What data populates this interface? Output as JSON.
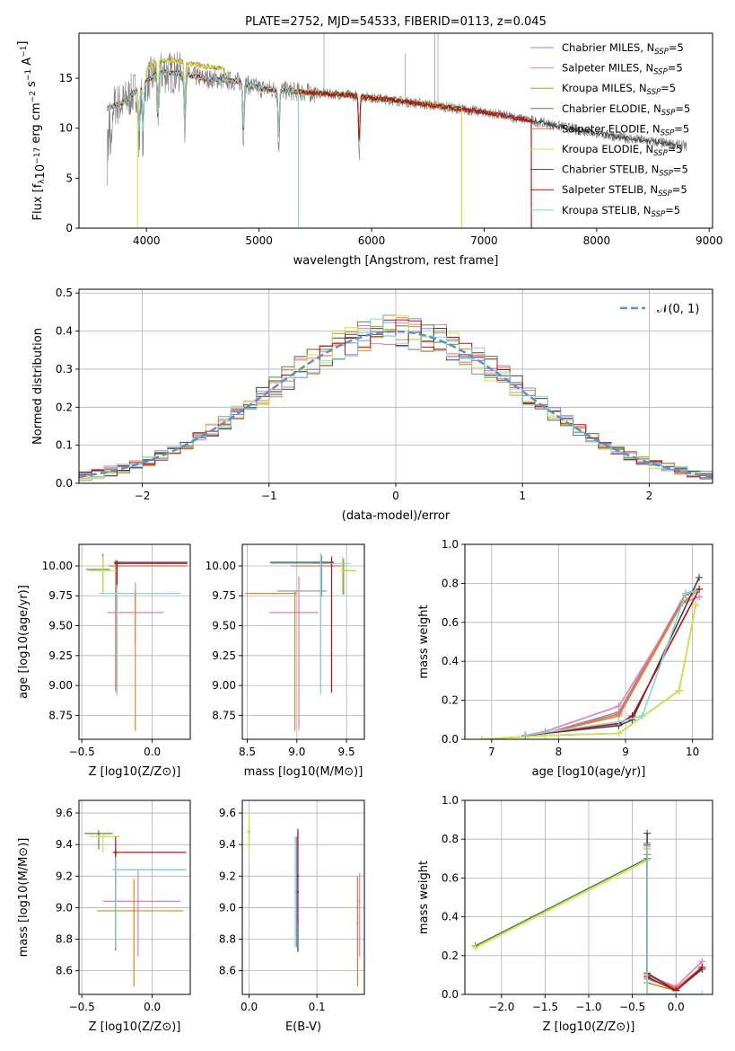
{
  "colors": {
    "Chabrier MILES": "#7b8fe0",
    "Salpeter MILES": "#e07fc0",
    "Kroupa MILES": "#d98a1c",
    "Chabrier ELODIE": "#4f8a45",
    "Salpeter ELODIE": "#ea7555",
    "Kroupa ELODIE": "#d2e640",
    "Chabrier STELIB": "#444444",
    "Salpeter STELIB": "#b51010",
    "Kroupa STELIB": "#7fd9dc",
    "normal": "#5b8fd0",
    "data": "#808080"
  },
  "legend": [
    {
      "key": "Chabrier MILES",
      "text": "Chabrier MILES, N",
      "sub": "SSP",
      "tail": "=5"
    },
    {
      "key": "Salpeter MILES",
      "text": "Salpeter MILES, N",
      "sub": "SSP",
      "tail": "=5"
    },
    {
      "key": "Kroupa MILES",
      "text": "Kroupa MILES, N",
      "sub": "SSP",
      "tail": "=5"
    },
    {
      "key": "Chabrier ELODIE",
      "text": "Chabrier ELODIE, N",
      "sub": "SSP",
      "tail": "=5"
    },
    {
      "key": "Salpeter ELODIE",
      "text": "Salpeter ELODIE, N",
      "sub": "SSP",
      "tail": "=5"
    },
    {
      "key": "Kroupa ELODIE",
      "text": "Kroupa ELODIE, N",
      "sub": "SSP",
      "tail": "=5"
    },
    {
      "key": "Chabrier STELIB",
      "text": "Chabrier STELIB, N",
      "sub": "SSP",
      "tail": "=5"
    },
    {
      "key": "Salpeter STELIB",
      "text": "Salpeter STELIB, N",
      "sub": "SSP",
      "tail": "=5"
    },
    {
      "key": "Kroupa STELIB",
      "text": "Kroupa STELIB, N",
      "sub": "SSP",
      "tail": "=5"
    }
  ],
  "chart_data": [
    {
      "id": "spectrum",
      "type": "line",
      "title": "PLATE=2752, MJD=54533, FIBERID=0113, z=0.045",
      "xlabel": "wavelength [Angstrom, rest frame]",
      "ylabel": "Flux [f_λ 10^-17 erg cm^-2 s^-1 A^-1]",
      "xlim": [
        3400,
        9030
      ],
      "ylim": [
        0,
        19.5
      ],
      "xticks": [
        4000,
        5000,
        6000,
        7000,
        8000,
        9000
      ],
      "yticks": [
        0,
        5,
        10,
        15
      ],
      "grid": false,
      "legend_position": "top-right",
      "continuum": [
        [
          3650,
          12.0
        ],
        [
          3800,
          12.6
        ],
        [
          3950,
          14.2
        ],
        [
          4100,
          15.6
        ],
        [
          4300,
          15.5
        ],
        [
          4500,
          15.0
        ],
        [
          4800,
          14.7
        ],
        [
          5000,
          14.0
        ],
        [
          5400,
          13.6
        ],
        [
          5800,
          13.3
        ],
        [
          6200,
          12.8
        ],
        [
          6600,
          12.2
        ],
        [
          7000,
          11.6
        ],
        [
          7400,
          10.8
        ],
        [
          7800,
          9.9
        ],
        [
          8200,
          9.1
        ],
        [
          8600,
          8.5
        ],
        [
          8800,
          8.2
        ]
      ],
      "absorption_lines": [
        3934,
        3969,
        4102,
        4340,
        4861,
        5175,
        5890
      ],
      "model_dips": [
        3920,
        5350,
        6800,
        7420
      ]
    },
    {
      "id": "residuals",
      "type": "bar",
      "xlabel": "(data-model)/error",
      "ylabel": "Normed distribution",
      "xlim": [
        -2.5,
        2.5
      ],
      "ylim": [
        0,
        0.51
      ],
      "xticks": [
        -2,
        -1,
        0,
        1,
        2
      ],
      "yticks": [
        0.0,
        0.1,
        0.2,
        0.3,
        0.4,
        0.5
      ],
      "grid": true,
      "legend": "𝒩(0, 1)",
      "legend_position": "top-right",
      "bin_width": 0.1,
      "series_note": "9 histogram step series, one per model"
    },
    {
      "id": "age_vs_Z",
      "type": "scatter",
      "xlabel": "Z [log10(Z/Z⊙)]",
      "ylabel": "age  [log10(age/yr)]",
      "xlim": [
        -0.52,
        0.27
      ],
      "ylim": [
        8.55,
        10.18
      ],
      "xticks": [
        -0.5,
        0.0
      ],
      "yticks": [
        8.75,
        9.0,
        9.25,
        9.5,
        9.75,
        10.0
      ],
      "grid": true,
      "errorbars": [
        {
          "series": "Chabrier MILES",
          "x": -0.25,
          "y": 10.0,
          "xerr": [
            0.0,
            0.5
          ],
          "yerr": [
            0.28,
            0.05
          ]
        },
        {
          "series": "Salpeter MILES",
          "x": -0.12,
          "y": 9.61,
          "xerr": [
            0.2,
            0.2
          ],
          "yerr": [
            0.25,
            0.25
          ]
        },
        {
          "series": "Kroupa MILES",
          "x": -0.12,
          "y": 9.77,
          "xerr": [
            0.12,
            0.2
          ],
          "yerr": [
            1.15,
            0.02
          ]
        },
        {
          "series": "Chabrier ELODIE",
          "x": -0.35,
          "y": 9.97,
          "xerr": [
            0.12,
            0.05
          ],
          "yerr": [
            0.2,
            0.13
          ]
        },
        {
          "series": "Salpeter ELODIE",
          "x": -0.26,
          "y": 10.0,
          "xerr": [
            0.05,
            0.5
          ],
          "yerr": [
            1.05,
            0.05
          ]
        },
        {
          "series": "Kroupa ELODIE",
          "x": -0.35,
          "y": 9.96,
          "xerr": [
            0.1,
            0.12
          ],
          "yerr": [
            0.2,
            0.12
          ]
        },
        {
          "series": "Chabrier STELIB",
          "x": -0.25,
          "y": 10.03,
          "xerr": [
            0.02,
            0.5
          ],
          "yerr": [
            1.1,
            0.01
          ]
        },
        {
          "series": "Salpeter STELIB",
          "x": -0.25,
          "y": 10.02,
          "xerr": [
            0.02,
            0.5
          ],
          "yerr": [
            0.18,
            0.01
          ]
        },
        {
          "series": "Kroupa STELIB",
          "x": -0.25,
          "y": 9.77,
          "xerr": [
            0.13,
            0.45
          ],
          "yerr": [
            0.85,
            0.07
          ]
        }
      ]
    },
    {
      "id": "age_vs_mass",
      "type": "scatter",
      "xlabel": "mass [log10(M/M⊙)]",
      "ylabel": "",
      "xlim": [
        8.45,
        9.68
      ],
      "ylim": [
        8.55,
        10.18
      ],
      "xticks": [
        8.5,
        9.0,
        9.5
      ],
      "yticks": [
        8.75,
        9.0,
        9.25,
        9.5,
        9.75,
        10.0
      ],
      "grid": true,
      "errorbars": [
        {
          "series": "Chabrier MILES",
          "x": 9.25,
          "y": 9.79,
          "xerr": [
            0.45,
            0.05
          ],
          "yerr": [
            0.05,
            0.3
          ]
        },
        {
          "series": "Salpeter MILES",
          "x": 9.02,
          "y": 9.61,
          "xerr": [
            0.3,
            0.2
          ],
          "yerr": [
            0.98,
            0.3
          ]
        },
        {
          "series": "Kroupa MILES",
          "x": 8.98,
          "y": 9.77,
          "xerr": [
            0.5,
            0.02
          ],
          "yerr": [
            1.15,
            0.02
          ]
        },
        {
          "series": "Chabrier ELODIE",
          "x": 9.47,
          "y": 9.96,
          "xerr": [
            0.02,
            0.12
          ],
          "yerr": [
            0.2,
            0.1
          ]
        },
        {
          "series": "Salpeter ELODIE",
          "x": 9.24,
          "y": 10.0,
          "xerr": [
            0.3,
            0.22
          ],
          "yerr": [
            1.05,
            0.05
          ]
        },
        {
          "series": "Kroupa ELODIE",
          "x": 9.46,
          "y": 9.96,
          "xerr": [
            0.02,
            0.12
          ],
          "yerr": [
            0.2,
            0.12
          ]
        },
        {
          "series": "Chabrier STELIB",
          "x": 9.35,
          "y": 10.03,
          "xerr": [
            0.62,
            0.02
          ],
          "yerr": [
            0.05,
            0.01
          ]
        },
        {
          "series": "Salpeter STELIB",
          "x": 9.35,
          "y": 10.02,
          "xerr": [
            0.2,
            0.02
          ],
          "yerr": [
            1.08,
            0.06
          ]
        },
        {
          "series": "Kroupa STELIB",
          "x": 9.24,
          "y": 10.02,
          "xerr": [
            0.5,
            0.3
          ],
          "yerr": [
            1.1,
            0.09
          ]
        }
      ]
    },
    {
      "id": "weight_vs_age",
      "type": "line",
      "xlabel": "age  [log10(age/yr)]",
      "ylabel": "mass weight",
      "xlim": [
        6.6,
        10.3
      ],
      "ylim": [
        0,
        1.0
      ],
      "xticks": [
        7,
        8,
        9,
        10
      ],
      "yticks": [
        0.0,
        0.2,
        0.4,
        0.6,
        0.8,
        1.0
      ],
      "grid": true,
      "series": [
        {
          "series": "Chabrier MILES",
          "x": [
            7.5,
            7.8,
            8.9,
            9.9,
            10.1
          ],
          "y": [
            0.02,
            0.03,
            0.14,
            0.75,
            0.77
          ]
        },
        {
          "series": "Salpeter MILES",
          "x": [
            7.5,
            7.8,
            8.9,
            9.85,
            10.1
          ],
          "y": [
            0.02,
            0.04,
            0.17,
            0.7,
            0.73
          ]
        },
        {
          "series": "Kroupa MILES",
          "x": [
            7.5,
            7.8,
            8.9,
            9.85,
            10.1
          ],
          "y": [
            0.02,
            0.03,
            0.12,
            0.7,
            0.77
          ]
        },
        {
          "series": "Chabrier ELODIE",
          "x": [
            6.85,
            7.8,
            8.9,
            9.8,
            10.05
          ],
          "y": [
            0.0,
            0.02,
            0.03,
            0.25,
            0.69
          ]
        },
        {
          "series": "Salpeter ELODIE",
          "x": [
            7.5,
            7.8,
            8.9,
            9.9,
            10.1
          ],
          "y": [
            0.02,
            0.03,
            0.13,
            0.74,
            0.77
          ]
        },
        {
          "series": "Kroupa ELODIE",
          "x": [
            6.85,
            7.8,
            8.9,
            9.8,
            10.05
          ],
          "y": [
            0.0,
            0.02,
            0.03,
            0.25,
            0.69
          ]
        },
        {
          "series": "Chabrier STELIB",
          "x": [
            7.5,
            8.9,
            9.1,
            10.1
          ],
          "y": [
            0.02,
            0.07,
            0.1,
            0.83
          ]
        },
        {
          "series": "Salpeter STELIB",
          "x": [
            7.5,
            8.9,
            9.1,
            10.1
          ],
          "y": [
            0.02,
            0.08,
            0.12,
            0.77
          ]
        },
        {
          "series": "Kroupa STELIB",
          "x": [
            7.5,
            8.9,
            9.25,
            9.9,
            10.05
          ],
          "y": [
            0.02,
            0.09,
            0.12,
            0.75,
            0.76
          ]
        }
      ]
    },
    {
      "id": "mass_vs_Z",
      "type": "scatter",
      "xlabel": "Z [log10(Z/Z⊙)]",
      "ylabel": "mass [log10(M/M⊙)]",
      "xlim": [
        -0.52,
        0.27
      ],
      "ylim": [
        8.45,
        9.68
      ],
      "xticks": [
        -0.5,
        0.0
      ],
      "yticks": [
        8.6,
        8.8,
        9.0,
        9.2,
        9.4,
        9.6
      ],
      "grid": true,
      "errorbars": [
        {
          "series": "Chabrier MILES",
          "x": -0.26,
          "y": 9.24,
          "xerr": [
            0.02,
            0.5
          ],
          "yerr": [
            0.5,
            0.06
          ]
        },
        {
          "series": "Salpeter MILES",
          "x": -0.1,
          "y": 9.04,
          "xerr": [
            0.25,
            0.3
          ],
          "yerr": [
            0.35,
            0.2
          ]
        },
        {
          "series": "Kroupa MILES",
          "x": -0.13,
          "y": 8.98,
          "xerr": [
            0.26,
            0.35
          ],
          "yerr": [
            0.48,
            0.2
          ]
        },
        {
          "series": "Chabrier ELODIE",
          "x": -0.38,
          "y": 9.47,
          "xerr": [
            0.1,
            0.1
          ],
          "yerr": [
            0.1,
            0.02
          ]
        },
        {
          "series": "Salpeter ELODIE",
          "x": -0.26,
          "y": 9.24,
          "xerr": [
            0.02,
            0.5
          ],
          "yerr": [
            0.5,
            0.06
          ]
        },
        {
          "series": "Kroupa ELODIE",
          "x": -0.35,
          "y": 9.45,
          "xerr": [
            0.1,
            0.12
          ],
          "yerr": [
            0.1,
            0.02
          ]
        },
        {
          "series": "Chabrier STELIB",
          "x": -0.26,
          "y": 9.35,
          "xerr": [
            0.02,
            0.5
          ],
          "yerr": [
            0.62,
            0.02
          ]
        },
        {
          "series": "Salpeter STELIB",
          "x": -0.26,
          "y": 9.35,
          "xerr": [
            0.02,
            0.5
          ],
          "yerr": [
            0.2,
            0.1
          ]
        },
        {
          "series": "Kroupa STELIB",
          "x": -0.26,
          "y": 9.24,
          "xerr": [
            0.02,
            0.5
          ],
          "yerr": [
            0.5,
            0.08
          ]
        }
      ]
    },
    {
      "id": "mass_vs_ebv",
      "type": "scatter",
      "xlabel": "E(B-V)",
      "ylabel": "",
      "xlim": [
        -0.01,
        0.17
      ],
      "ylim": [
        8.45,
        9.68
      ],
      "xticks": [
        0.0,
        0.1
      ],
      "yticks": [
        8.6,
        8.8,
        9.0,
        9.2,
        9.4,
        9.6
      ],
      "grid": true,
      "errorbars": [
        {
          "series": "Chabrier MILES",
          "x": 0.07,
          "y": 9.1,
          "yerr": [
            0.35,
            0.35
          ]
        },
        {
          "series": "Salpeter MILES",
          "x": 0.163,
          "y": 9.04,
          "yerr": [
            0.35,
            0.18
          ]
        },
        {
          "series": "Kroupa MILES",
          "x": 0.16,
          "y": 9.0,
          "yerr": [
            0.5,
            0.18
          ]
        },
        {
          "series": "Chabrier ELODIE",
          "x": 0.0,
          "y": 9.48,
          "yerr": [
            0.1,
            0.1
          ]
        },
        {
          "series": "Salpeter ELODIE",
          "x": 0.16,
          "y": 8.9,
          "yerr": [
            0.3,
            0.3
          ]
        },
        {
          "series": "Kroupa ELODIE",
          "x": 0.0,
          "y": 9.45,
          "yerr": [
            0.1,
            0.15
          ]
        },
        {
          "series": "Chabrier STELIB",
          "x": 0.072,
          "y": 9.1,
          "yerr": [
            0.38,
            0.38
          ]
        },
        {
          "series": "Salpeter STELIB",
          "x": 0.072,
          "y": 9.2,
          "yerr": [
            0.3,
            0.3
          ]
        },
        {
          "series": "Kroupa STELIB",
          "x": 0.068,
          "y": 9.1,
          "yerr": [
            0.35,
            0.35
          ]
        }
      ]
    },
    {
      "id": "weight_vs_Z",
      "type": "line",
      "xlabel": "Z [log10(Z/Z⊙)]",
      "ylabel": "mass weight",
      "xlim": [
        -2.42,
        0.42
      ],
      "ylim": [
        0,
        1.0
      ],
      "xticks": [
        -2.0,
        -1.5,
        -1.0,
        -0.5,
        0.0
      ],
      "yticks": [
        0.0,
        0.2,
        0.4,
        0.6,
        0.8,
        1.0
      ],
      "grid": true,
      "series": [
        {
          "series": "Chabrier MILES",
          "x": [
            -0.33,
            -0.33,
            0.0,
            0.3
          ],
          "y": [
            0.78,
            0.08,
            0.03,
            0.14
          ]
        },
        {
          "series": "Salpeter MILES",
          "x": [
            -0.33,
            -0.33,
            0.0,
            0.3
          ],
          "y": [
            0.72,
            0.1,
            0.04,
            0.17
          ]
        },
        {
          "series": "Kroupa MILES",
          "x": [
            -0.33,
            -0.33,
            0.0,
            0.3
          ],
          "y": [
            0.75,
            0.06,
            0.02,
            0.13
          ]
        },
        {
          "series": "Chabrier ELODIE",
          "x": [
            -2.3,
            -0.33,
            -0.33,
            0.0
          ],
          "y": [
            0.25,
            0.7,
            0.0,
            0.0
          ]
        },
        {
          "series": "Salpeter ELODIE",
          "x": [
            -0.33,
            -0.33,
            0.0,
            0.3
          ],
          "y": [
            0.72,
            0.1,
            0.03,
            0.14
          ]
        },
        {
          "series": "Kroupa ELODIE",
          "x": [
            -2.3,
            -0.33,
            -0.33,
            0.0
          ],
          "y": [
            0.24,
            0.69,
            0.0,
            0.0
          ]
        },
        {
          "series": "Chabrier STELIB",
          "x": [
            -0.33,
            -0.33,
            0.0,
            0.3
          ],
          "y": [
            0.83,
            0.11,
            0.02,
            0.13
          ]
        },
        {
          "series": "Salpeter STELIB",
          "x": [
            -0.33,
            -0.33,
            0.0,
            0.3
          ],
          "y": [
            0.77,
            0.09,
            0.02,
            0.14
          ]
        },
        {
          "series": "Kroupa STELIB",
          "x": [
            -0.33,
            -0.33,
            0.0,
            0.3
          ],
          "y": [
            0.76,
            0.0,
            0.0,
            0.0
          ]
        }
      ]
    }
  ]
}
